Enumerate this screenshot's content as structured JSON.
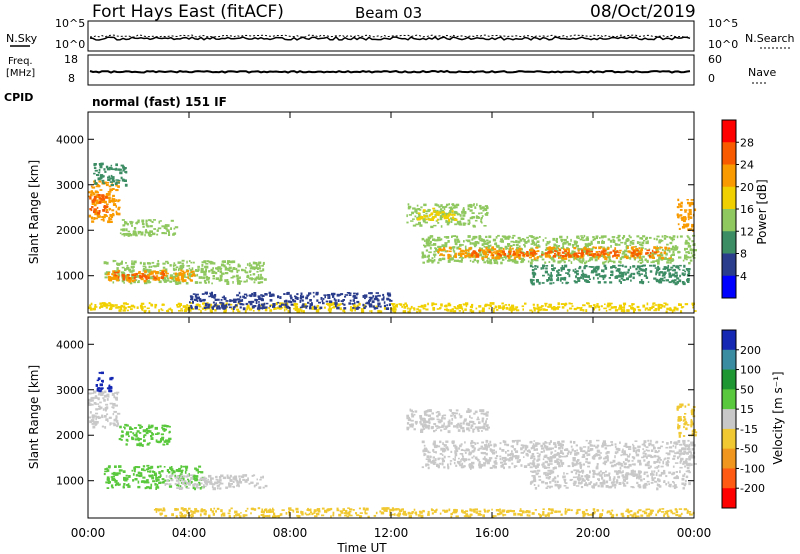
{
  "header": {
    "station": "Fort Hays East (fitACF)",
    "beam": "Beam 03",
    "date": "08/Oct/2019"
  },
  "noise_panel": {
    "left_label": "N.Sky",
    "right_label": "N.Search",
    "left_ticks": [
      "10^5",
      "10^0"
    ],
    "right_ticks": [
      "10^5",
      "10^0"
    ]
  },
  "freq_panel": {
    "left_label_1": "Freq.",
    "left_label_2": "[MHz]",
    "right_label": "Nave",
    "left_ticks": [
      "18",
      "8"
    ],
    "right_ticks": [
      "60",
      "0"
    ]
  },
  "cpid_panel": {
    "label": "CPID",
    "mode_text": "normal (fast) 151 IF"
  },
  "x_axis": {
    "label": "Time UT",
    "ticks": [
      "00:00",
      "04:00",
      "08:00",
      "12:00",
      "16:00",
      "20:00",
      "00:00"
    ]
  },
  "power_colorbar": {
    "label": "Power [dB]",
    "ticks": [
      "28",
      "24",
      "20",
      "16",
      "12",
      "8",
      "4"
    ],
    "colors": [
      "#ff0000",
      "#f85a00",
      "#f89a00",
      "#f0d000",
      "#90c860",
      "#3c8c64",
      "#2a3c8c",
      "#0000ff"
    ]
  },
  "velocity_colorbar": {
    "label": "Velocity [m s⁻¹]",
    "ticks": [
      "200",
      "100",
      "50",
      "15",
      "-15",
      "-50",
      "-100",
      "-200"
    ],
    "colors": [
      "#1428b4",
      "#3a8ca0",
      "#1e9632",
      "#5ac83c",
      "#c8c8c8",
      "#f0c832",
      "#f0961e",
      "#ff5a14",
      "#ff0000"
    ]
  },
  "chart_data": [
    {
      "type": "heatmap",
      "title": "Power",
      "xlabel": "Time UT",
      "ylabel": "Slant Range [km]",
      "ylim": [
        180,
        4600
      ],
      "xlim": [
        0,
        24
      ],
      "y_ticks": [
        "4000",
        "3000",
        "2000",
        "1000"
      ],
      "regions": [
        {
          "t0": 0.0,
          "t1": 1.2,
          "r0": 2200,
          "r1": 3100,
          "color": "#f89a00"
        },
        {
          "t0": 0.0,
          "t1": 0.7,
          "r0": 2400,
          "r1": 2800,
          "color": "#f85a00"
        },
        {
          "t0": 0.2,
          "t1": 1.5,
          "r0": 3000,
          "r1": 3500,
          "color": "#3c8c64"
        },
        {
          "t0": 0.6,
          "t1": 7.0,
          "r0": 850,
          "r1": 1350,
          "color": "#90c860"
        },
        {
          "t0": 0.7,
          "t1": 4.2,
          "r0": 900,
          "r1": 1150,
          "color": "#f89a00"
        },
        {
          "t0": 1.0,
          "t1": 3.0,
          "r0": 950,
          "r1": 1100,
          "color": "#f85a00"
        },
        {
          "t0": 1.2,
          "t1": 3.5,
          "r0": 1900,
          "r1": 2250,
          "color": "#90c860"
        },
        {
          "t0": 0.0,
          "t1": 24.0,
          "r0": 230,
          "r1": 420,
          "color": "#f0d000"
        },
        {
          "t0": 4.0,
          "t1": 12.0,
          "r0": 300,
          "r1": 650,
          "color": "#2a3c8c"
        },
        {
          "t0": 12.6,
          "t1": 15.8,
          "r0": 2100,
          "r1": 2600,
          "color": "#90c860"
        },
        {
          "t0": 13.0,
          "t1": 14.5,
          "r0": 2250,
          "r1": 2500,
          "color": "#f0d000"
        },
        {
          "t0": 13.2,
          "t1": 24.0,
          "r0": 1300,
          "r1": 1900,
          "color": "#90c860"
        },
        {
          "t0": 13.8,
          "t1": 23.0,
          "r0": 1400,
          "r1": 1650,
          "color": "#f89a00"
        },
        {
          "t0": 15.0,
          "t1": 22.5,
          "r0": 1450,
          "r1": 1580,
          "color": "#f85a00"
        },
        {
          "t0": 17.5,
          "t1": 23.8,
          "r0": 850,
          "r1": 1250,
          "color": "#3c8c64"
        },
        {
          "t0": 23.3,
          "t1": 24.0,
          "r0": 2000,
          "r1": 2700,
          "color": "#f89a00"
        }
      ]
    },
    {
      "type": "heatmap",
      "title": "Velocity",
      "xlabel": "Time UT",
      "ylabel": "Slant Range [km]",
      "ylim": [
        180,
        4600
      ],
      "xlim": [
        0,
        24
      ],
      "y_ticks": [
        "4000",
        "3000",
        "2000",
        "1000"
      ],
      "regions": [
        {
          "t0": 0.0,
          "t1": 1.2,
          "r0": 2200,
          "r1": 3000,
          "color": "#c8c8c8"
        },
        {
          "t0": 0.3,
          "t1": 0.9,
          "r0": 3000,
          "r1": 3400,
          "color": "#1428b4"
        },
        {
          "t0": 0.6,
          "t1": 4.5,
          "r0": 850,
          "r1": 1350,
          "color": "#5ac83c"
        },
        {
          "t0": 3.0,
          "t1": 7.0,
          "r0": 850,
          "r1": 1150,
          "color": "#c8c8c8"
        },
        {
          "t0": 1.2,
          "t1": 3.2,
          "r0": 1800,
          "r1": 2250,
          "color": "#5ac83c"
        },
        {
          "t0": 2.5,
          "t1": 12.5,
          "r0": 230,
          "r1": 420,
          "color": "#f0c832"
        },
        {
          "t0": 12.0,
          "t1": 24.0,
          "r0": 230,
          "r1": 400,
          "color": "#f0c832"
        },
        {
          "t0": 12.6,
          "t1": 15.8,
          "r0": 2100,
          "r1": 2600,
          "color": "#c8c8c8"
        },
        {
          "t0": 13.2,
          "t1": 24.0,
          "r0": 1300,
          "r1": 1900,
          "color": "#c8c8c8"
        },
        {
          "t0": 17.5,
          "t1": 23.8,
          "r0": 850,
          "r1": 1250,
          "color": "#c8c8c8"
        },
        {
          "t0": 23.3,
          "t1": 24.0,
          "r0": 2000,
          "r1": 2700,
          "color": "#f0c832"
        }
      ]
    }
  ]
}
